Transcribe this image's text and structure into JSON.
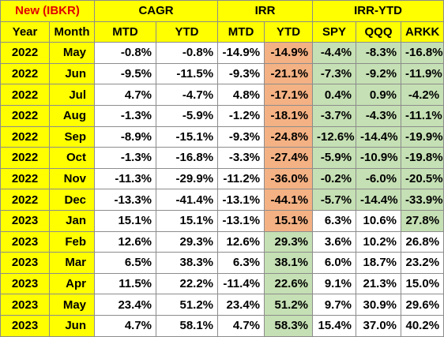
{
  "colors": {
    "header_bg": "#ffff00",
    "title_text": "#e00000",
    "negative_bg": "#f4b183",
    "positive_bg": "#c5e0b4",
    "plain_bg": "#ffffff",
    "border": "#8c8c8c"
  },
  "header": {
    "group_row": {
      "title": "New (IBKR)",
      "cagr": "CAGR",
      "irr": "IRR",
      "irr_ytd": "IRR-YTD"
    },
    "columns": [
      "Year",
      "Month",
      "MTD",
      "YTD",
      "MTD",
      "YTD",
      "SPY",
      "QQQ",
      "ARKK"
    ]
  },
  "rows": [
    {
      "year": "2022",
      "month": "May",
      "cagr_mtd": "-0.8%",
      "cagr_ytd": "-0.8%",
      "irr_mtd": "-14.9%",
      "irr_ytd": "-14.9%",
      "irr_ytd_style": "negative",
      "spy": "-4.4%",
      "qqq": "-8.3%",
      "arkk": "-16.8%",
      "bench_style": "positive"
    },
    {
      "year": "2022",
      "month": "Jun",
      "cagr_mtd": "-9.5%",
      "cagr_ytd": "-11.5%",
      "irr_mtd": "-9.3%",
      "irr_ytd": "-21.1%",
      "irr_ytd_style": "negative",
      "spy": "-7.3%",
      "qqq": "-9.2%",
      "arkk": "-11.9%",
      "bench_style": "positive"
    },
    {
      "year": "2022",
      "month": "Jul",
      "cagr_mtd": "4.7%",
      "cagr_ytd": "-4.7%",
      "irr_mtd": "4.8%",
      "irr_ytd": "-17.1%",
      "irr_ytd_style": "negative",
      "spy": "0.4%",
      "qqq": "0.9%",
      "arkk": "-4.2%",
      "bench_style": "positive"
    },
    {
      "year": "2022",
      "month": "Aug",
      "cagr_mtd": "-1.3%",
      "cagr_ytd": "-5.9%",
      "irr_mtd": "-1.2%",
      "irr_ytd": "-18.1%",
      "irr_ytd_style": "negative",
      "spy": "-3.7%",
      "qqq": "-4.3%",
      "arkk": "-11.1%",
      "bench_style": "positive"
    },
    {
      "year": "2022",
      "month": "Sep",
      "cagr_mtd": "-8.9%",
      "cagr_ytd": "-15.1%",
      "irr_mtd": "-9.3%",
      "irr_ytd": "-24.8%",
      "irr_ytd_style": "negative",
      "spy": "-12.6%",
      "qqq": "-14.4%",
      "arkk": "-19.9%",
      "bench_style": "positive"
    },
    {
      "year": "2022",
      "month": "Oct",
      "cagr_mtd": "-1.3%",
      "cagr_ytd": "-16.8%",
      "irr_mtd": "-3.3%",
      "irr_ytd": "-27.4%",
      "irr_ytd_style": "negative",
      "spy": "-5.9%",
      "qqq": "-10.9%",
      "arkk": "-19.8%",
      "bench_style": "positive"
    },
    {
      "year": "2022",
      "month": "Nov",
      "cagr_mtd": "-11.3%",
      "cagr_ytd": "-29.9%",
      "irr_mtd": "-11.2%",
      "irr_ytd": "-36.0%",
      "irr_ytd_style": "negative",
      "spy": "-0.2%",
      "qqq": "-6.0%",
      "arkk": "-20.5%",
      "bench_style": "positive"
    },
    {
      "year": "2022",
      "month": "Dec",
      "cagr_mtd": "-13.3%",
      "cagr_ytd": "-41.4%",
      "irr_mtd": "-13.1%",
      "irr_ytd": "-44.1%",
      "irr_ytd_style": "negative",
      "spy": "-5.7%",
      "qqq": "-14.4%",
      "arkk": "-33.9%",
      "bench_style": "positive"
    },
    {
      "year": "2023",
      "month": "Jan",
      "cagr_mtd": "15.1%",
      "cagr_ytd": "15.1%",
      "irr_mtd": "-13.1%",
      "irr_ytd": "15.1%",
      "irr_ytd_style": "negative",
      "spy": "6.3%",
      "qqq": "10.6%",
      "arkk": "27.8%",
      "bench_style": "arkk_only"
    },
    {
      "year": "2023",
      "month": "Feb",
      "cagr_mtd": "12.6%",
      "cagr_ytd": "29.3%",
      "irr_mtd": "12.6%",
      "irr_ytd": "29.3%",
      "irr_ytd_style": "positive",
      "spy": "3.6%",
      "qqq": "10.2%",
      "arkk": "26.8%",
      "bench_style": "none"
    },
    {
      "year": "2023",
      "month": "Mar",
      "cagr_mtd": "6.5%",
      "cagr_ytd": "38.3%",
      "irr_mtd": "6.3%",
      "irr_ytd": "38.1%",
      "irr_ytd_style": "positive",
      "spy": "6.0%",
      "qqq": "18.7%",
      "arkk": "23.2%",
      "bench_style": "none"
    },
    {
      "year": "2023",
      "month": "Apr",
      "cagr_mtd": "11.5%",
      "cagr_ytd": "22.2%",
      "irr_mtd": "-11.4%",
      "irr_ytd": "22.6%",
      "irr_ytd_style": "positive",
      "spy": "9.1%",
      "qqq": "21.3%",
      "arkk": "15.0%",
      "bench_style": "none"
    },
    {
      "year": "2023",
      "month": "May",
      "cagr_mtd": "23.4%",
      "cagr_ytd": "51.2%",
      "irr_mtd": "23.4%",
      "irr_ytd": "51.2%",
      "irr_ytd_style": "positive",
      "spy": "9.7%",
      "qqq": "30.9%",
      "arkk": "29.6%",
      "bench_style": "none"
    },
    {
      "year": "2023",
      "month": "Jun",
      "cagr_mtd": "4.7%",
      "cagr_ytd": "58.1%",
      "irr_mtd": "4.7%",
      "irr_ytd": "58.3%",
      "irr_ytd_style": "positive",
      "spy": "15.4%",
      "qqq": "37.0%",
      "arkk": "40.2%",
      "bench_style": "none"
    }
  ]
}
